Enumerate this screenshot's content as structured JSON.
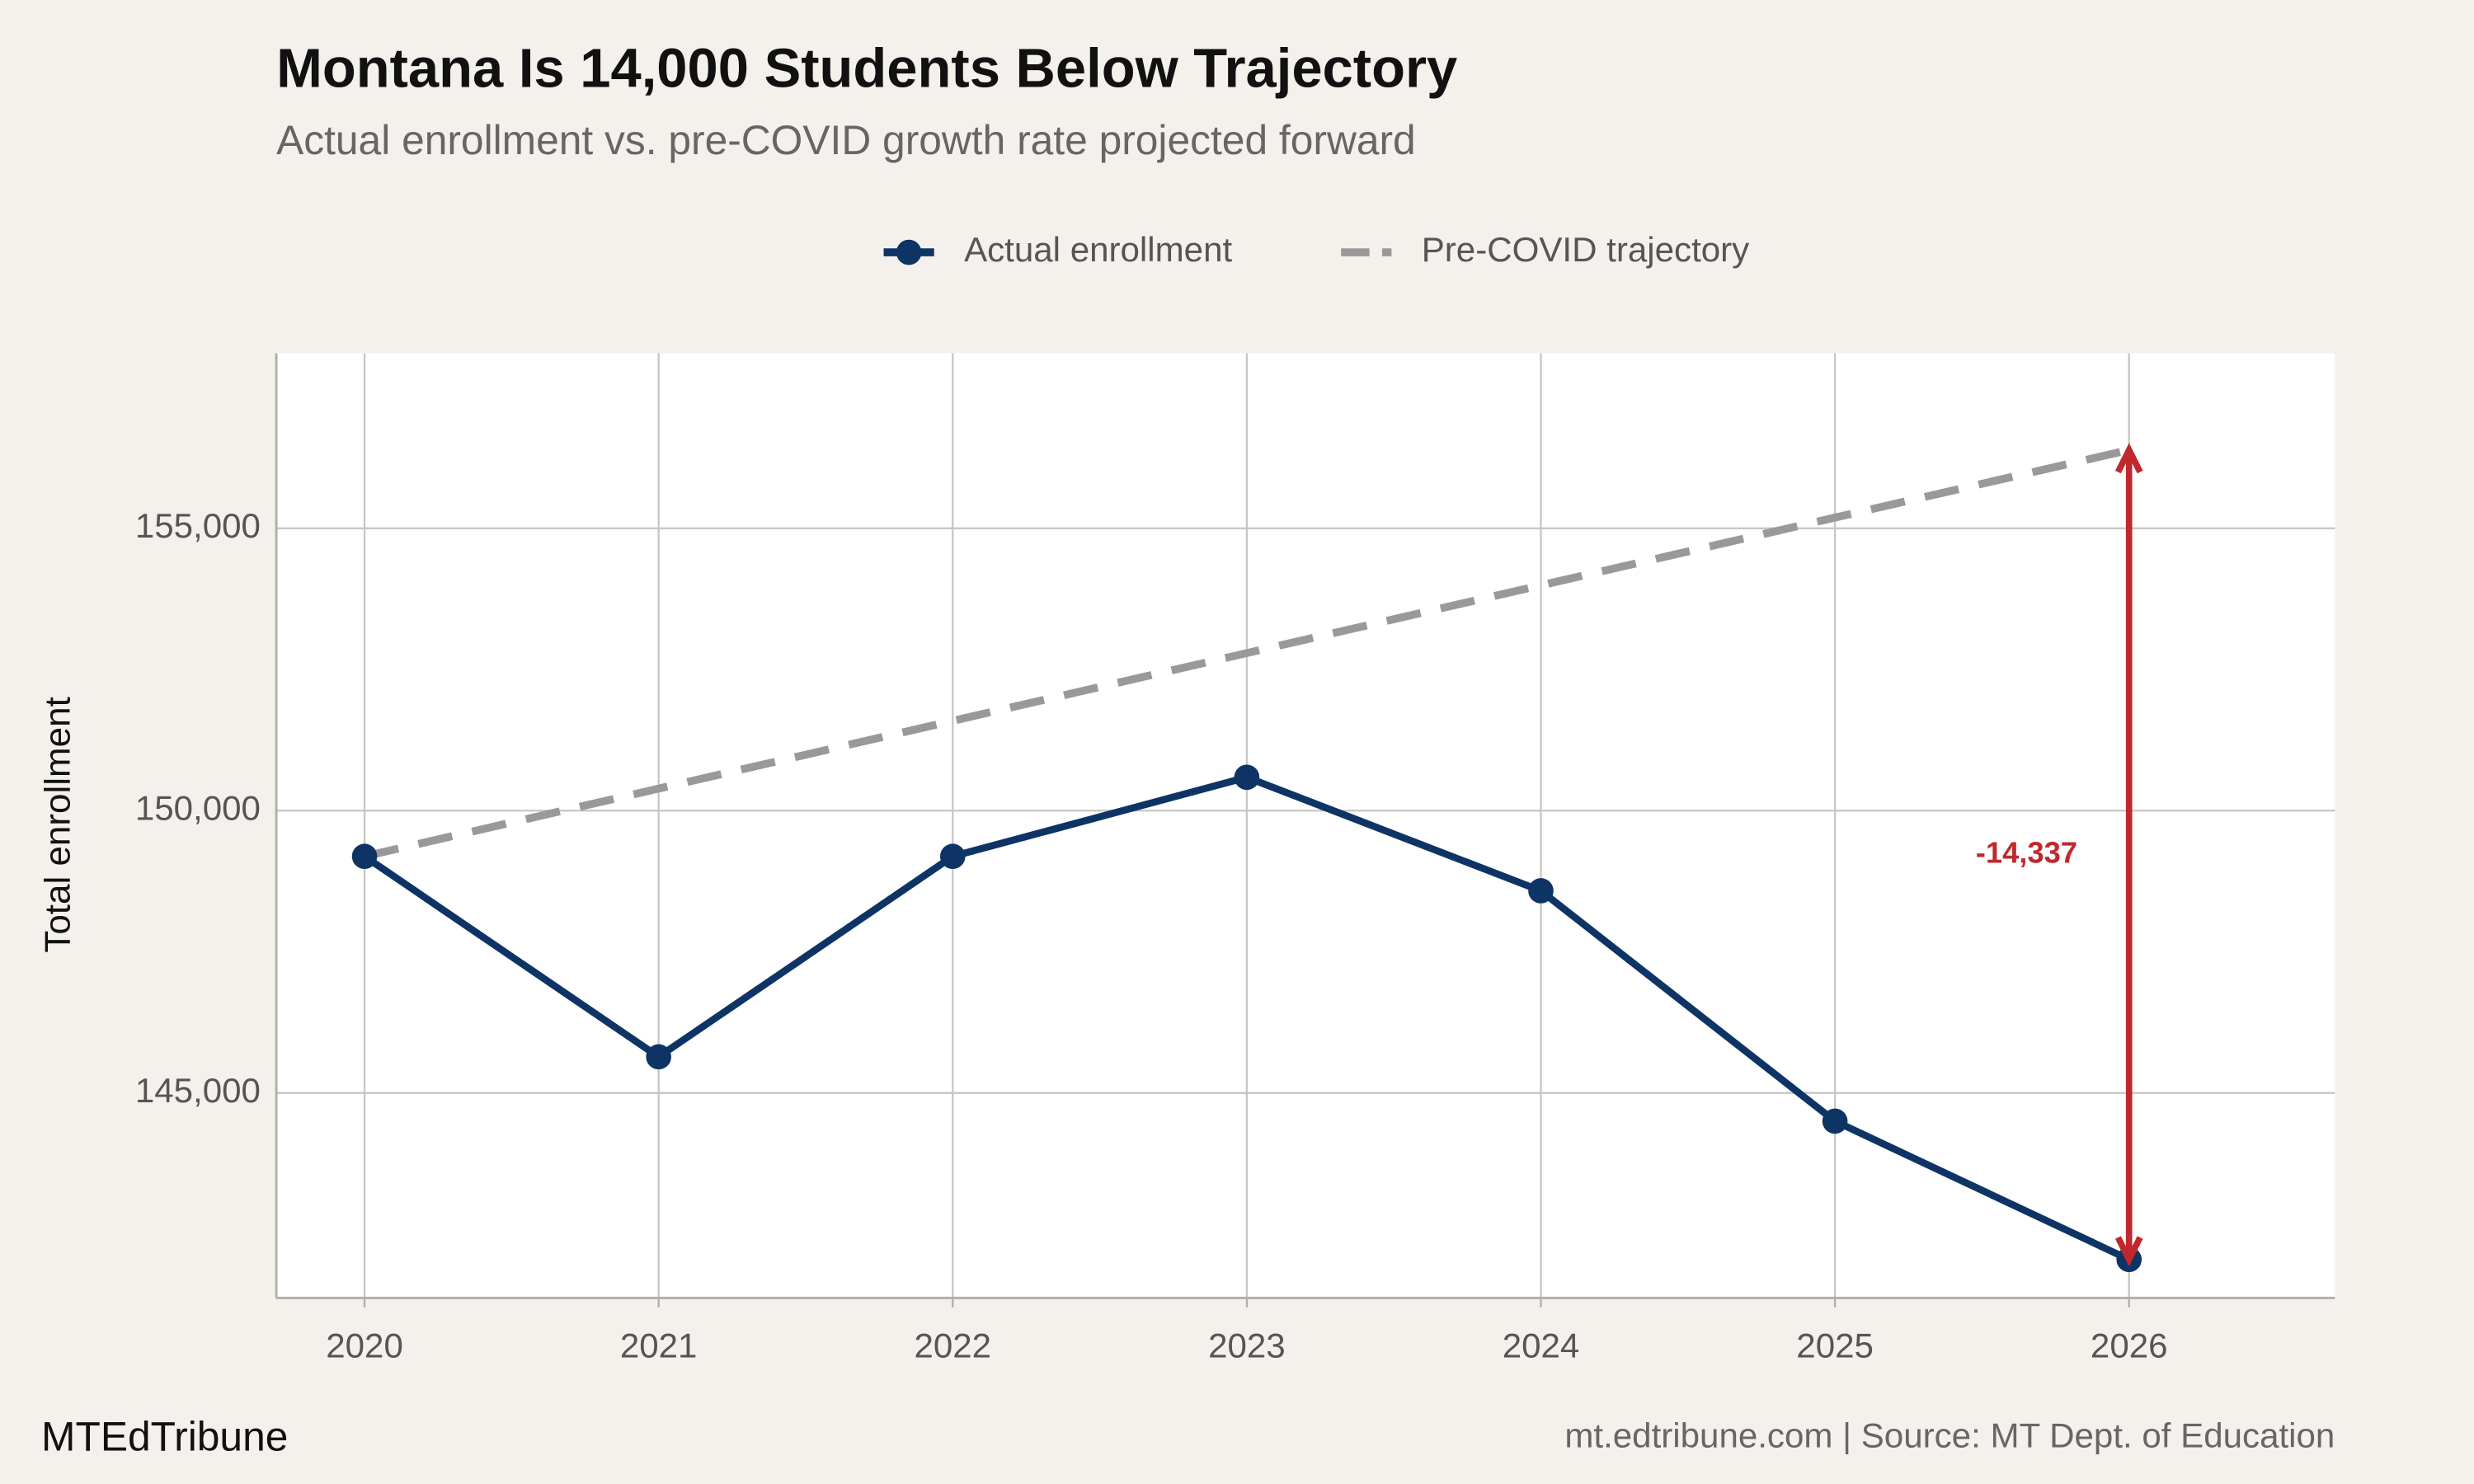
{
  "chart_data": {
    "type": "line",
    "title": "Montana Is 14,000 Students Below Trajectory",
    "subtitle": "Actual enrollment vs. pre-COVID growth rate projected forward",
    "y_label": "Total enrollment",
    "x": [
      2020,
      2021,
      2022,
      2023,
      2024,
      2025,
      2026
    ],
    "series": [
      {
        "name": "Actual enrollment",
        "color": "#0d3464",
        "style": "solid",
        "markers": true,
        "values": [
          149190,
          145640,
          149190,
          150590,
          148580,
          144500,
          142050
        ]
      },
      {
        "name": "Pre-COVID trajectory",
        "color": "#999999",
        "style": "dashed",
        "markers": false,
        "values": [
          149190,
          150390,
          151590,
          152790,
          153990,
          155190,
          156387
        ]
      }
    ],
    "annotation": {
      "value": -14337,
      "label": "-14,337",
      "color": "#c0282d"
    },
    "xlim": [
      2019.7,
      2026.7
    ],
    "xticks": [
      2020,
      2021,
      2022,
      2023,
      2024,
      2025,
      2026
    ],
    "ylim": [
      141370,
      158100
    ],
    "yticks": [
      {
        "value": 145000,
        "label": "145,000"
      },
      {
        "value": 150000,
        "label": "150,000"
      },
      {
        "value": 155000,
        "label": "155,000"
      }
    ],
    "grid": true,
    "legend_position": "top",
    "footer_left": "MTEdTribune",
    "footer_right": "mt.edtribune.com | Source: MT Dept. of Education"
  }
}
